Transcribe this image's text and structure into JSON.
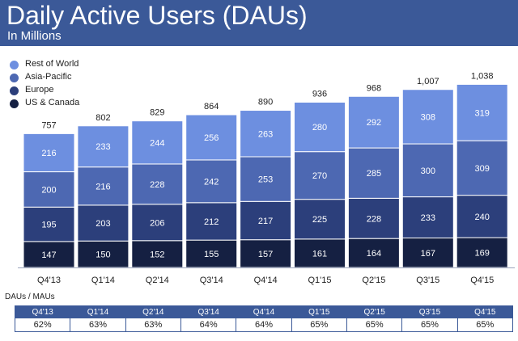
{
  "header": {
    "title": "Daily Active Users (DAUs)",
    "subtitle": "In Millions"
  },
  "colors": {
    "header_bg": "#3b5998",
    "rest_of_world": "#6d8fe0",
    "asia_pacific": "#4d68b2",
    "europe": "#2c3f7b",
    "us_canada": "#152042"
  },
  "chart_data": {
    "type": "bar",
    "stacked": true,
    "title": "Daily Active Users (DAUs)",
    "subtitle": "In Millions",
    "categories": [
      "Q4'13",
      "Q1'14",
      "Q2'14",
      "Q3'14",
      "Q4'14",
      "Q1'15",
      "Q2'15",
      "Q3'15",
      "Q4'15"
    ],
    "series": [
      {
        "name": "US & Canada",
        "values": [
          147,
          150,
          152,
          155,
          157,
          161,
          164,
          167,
          169
        ]
      },
      {
        "name": "Europe",
        "values": [
          195,
          203,
          206,
          212,
          217,
          225,
          228,
          233,
          240
        ]
      },
      {
        "name": "Asia-Pacific",
        "values": [
          200,
          216,
          228,
          242,
          253,
          270,
          285,
          300,
          309
        ]
      },
      {
        "name": "Rest of World",
        "values": [
          216,
          233,
          244,
          256,
          263,
          280,
          292,
          308,
          319
        ]
      }
    ],
    "totals": [
      "757",
      "802",
      "829",
      "864",
      "890",
      "936",
      "968",
      "1,007",
      "1,038"
    ],
    "legend": [
      "Rest of World",
      "Asia-Pacific",
      "Europe",
      "US & Canada"
    ],
    "legend_position": "top-left",
    "grid": false
  },
  "dau_mau": {
    "label": "DAUs / MAUs",
    "quarters": [
      "Q4'13",
      "Q1'14",
      "Q2'14",
      "Q3'14",
      "Q4'14",
      "Q1'15",
      "Q2'15",
      "Q3'15",
      "Q4'15"
    ],
    "values": [
      "62%",
      "63%",
      "63%",
      "64%",
      "64%",
      "65%",
      "65%",
      "65%",
      "65%"
    ]
  }
}
